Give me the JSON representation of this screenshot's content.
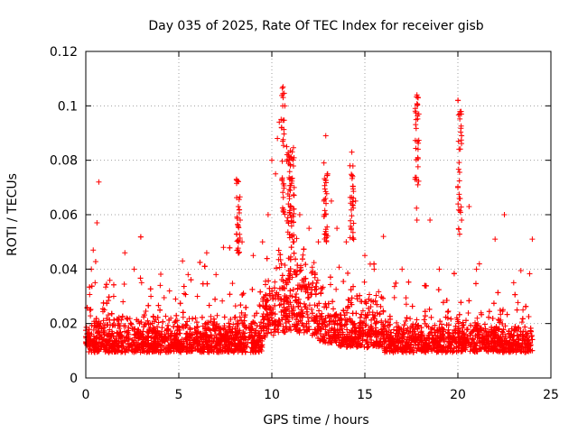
{
  "chart_data": {
    "type": "scatter",
    "title": "Day 035 of 2025, Rate Of TEC Index for receiver gisb",
    "xlabel": "GPS time / hours",
    "ylabel": "ROTI / TECUs",
    "xlim": [
      0,
      25
    ],
    "ylim": [
      0,
      0.12
    ],
    "x_ticks": [
      "0",
      "5",
      "10",
      "15",
      "20",
      "25"
    ],
    "y_ticks": [
      "0",
      "0.02",
      "0.04",
      "0.06",
      "0.08",
      "0.1",
      "0.12"
    ],
    "grid": true,
    "marker": "+",
    "color": "#ff0000",
    "points_description": "dense band of ROTI values mostly between 0.005 and 0.03 across 0-24 h, with enhanced activity 10-13 h",
    "points": [
      [
        0.1,
        0.015
      ],
      [
        0.3,
        0.04
      ],
      [
        0.4,
        0.047
      ],
      [
        0.5,
        0.035
      ],
      [
        0.6,
        0.057
      ],
      [
        0.7,
        0.072
      ],
      [
        1.0,
        0.025
      ],
      [
        1.5,
        0.03
      ],
      [
        2.0,
        0.028
      ],
      [
        2.1,
        0.046
      ],
      [
        2.6,
        0.04
      ],
      [
        3.0,
        0.035
      ],
      [
        3.5,
        0.03
      ],
      [
        4.0,
        0.034
      ],
      [
        4.5,
        0.032
      ],
      [
        5.2,
        0.043
      ],
      [
        5.5,
        0.038
      ],
      [
        6.0,
        0.03
      ],
      [
        6.5,
        0.046
      ],
      [
        7.0,
        0.038
      ],
      [
        7.4,
        0.048
      ],
      [
        8.1,
        0.073
      ],
      [
        8.2,
        0.063
      ],
      [
        8.3,
        0.058
      ],
      [
        8.4,
        0.05
      ],
      [
        9.0,
        0.045
      ],
      [
        9.5,
        0.05
      ],
      [
        9.8,
        0.06
      ],
      [
        10.0,
        0.08
      ],
      [
        10.2,
        0.075
      ],
      [
        10.3,
        0.088
      ],
      [
        10.4,
        0.094
      ],
      [
        10.5,
        0.095
      ],
      [
        10.6,
        0.107
      ],
      [
        10.7,
        0.1
      ],
      [
        10.8,
        0.085
      ],
      [
        11.0,
        0.078
      ],
      [
        11.2,
        0.07
      ],
      [
        11.5,
        0.06
      ],
      [
        12.0,
        0.055
      ],
      [
        12.5,
        0.05
      ],
      [
        12.8,
        0.079
      ],
      [
        12.9,
        0.089
      ],
      [
        13.0,
        0.075
      ],
      [
        13.2,
        0.065
      ],
      [
        13.5,
        0.055
      ],
      [
        14.0,
        0.05
      ],
      [
        14.2,
        0.078
      ],
      [
        14.3,
        0.083
      ],
      [
        14.5,
        0.065
      ],
      [
        15.0,
        0.045
      ],
      [
        15.5,
        0.04
      ],
      [
        16.0,
        0.052
      ],
      [
        17.0,
        0.04
      ],
      [
        17.8,
        0.104
      ],
      [
        17.9,
        0.097
      ],
      [
        17.7,
        0.073
      ],
      [
        17.8,
        0.058
      ],
      [
        18.5,
        0.058
      ],
      [
        19.0,
        0.04
      ],
      [
        20.0,
        0.102
      ],
      [
        20.1,
        0.097
      ],
      [
        20.2,
        0.089
      ],
      [
        20.0,
        0.07
      ],
      [
        20.2,
        0.058
      ],
      [
        20.6,
        0.063
      ],
      [
        21.0,
        0.04
      ],
      [
        22.0,
        0.051
      ],
      [
        22.5,
        0.06
      ],
      [
        23.0,
        0.035
      ],
      [
        24.0,
        0.051
      ],
      [
        23.5,
        0.025
      ]
    ]
  }
}
